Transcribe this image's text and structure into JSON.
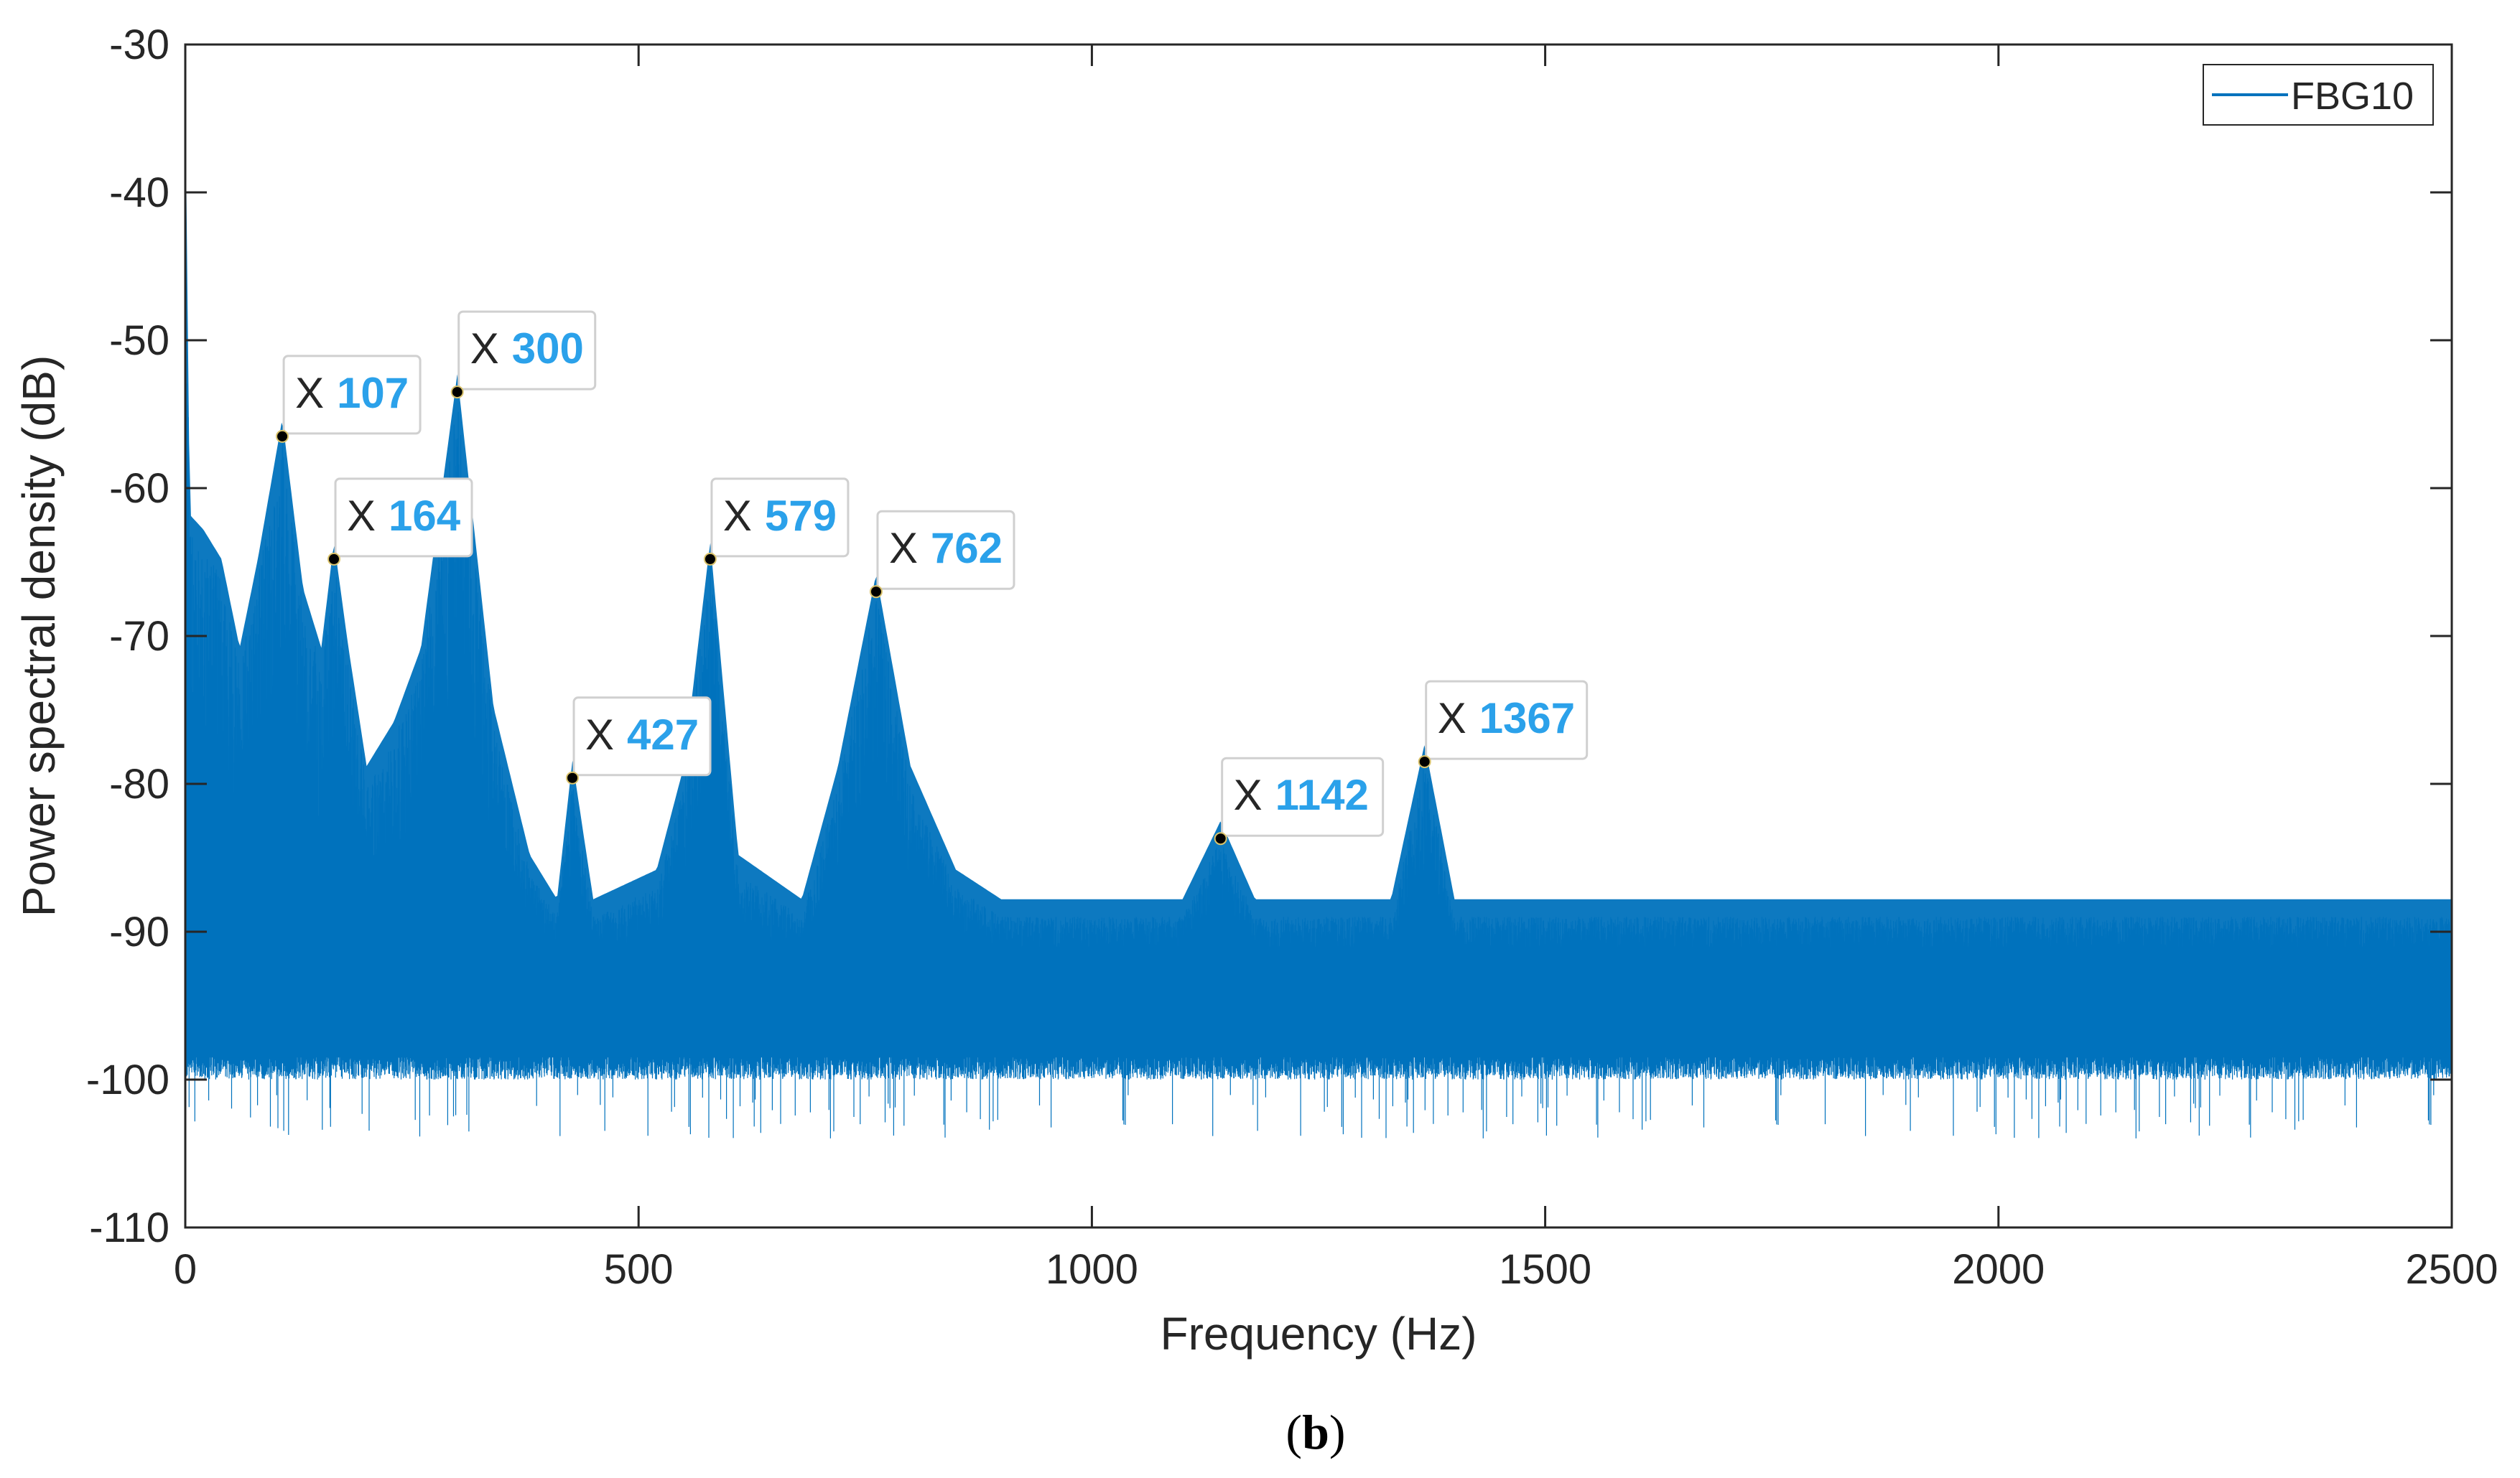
{
  "chart_data": {
    "type": "line",
    "title": "",
    "xlabel": "Frequency (Hz)",
    "ylabel": "Power spectral density (dB)",
    "xlim": [
      0,
      2500
    ],
    "ylim": [
      -110,
      -30
    ],
    "x_ticks": [
      "0",
      "500",
      "1000",
      "1500",
      "2000",
      "2500"
    ],
    "y_ticks": [
      "-30",
      "-40",
      "-50",
      "-60",
      "-70",
      "-80",
      "-90",
      "-100",
      "-110"
    ],
    "grid": false,
    "legend_position": "top-right",
    "series": [
      {
        "name": "FBG10",
        "color": "#0072bd",
        "noise_floor_mean": -95,
        "noise_floor_band": [
          -100,
          -90
        ],
        "envelope_x": [
          0,
          5,
          20,
          40,
          60,
          80,
          107,
          130,
          150,
          164,
          180,
          200,
          230,
          260,
          300,
          340,
          380,
          410,
          427,
          450,
          520,
          550,
          579,
          610,
          680,
          720,
          762,
          800,
          850,
          900,
          1100,
          1142,
          1180,
          1330,
          1367,
          1400,
          2500
        ],
        "envelope_top": [
          -34,
          -63,
          -64,
          -66,
          -72,
          -66,
          -56.5,
          -68,
          -72,
          -64.8,
          -72,
          -80,
          -77,
          -72,
          -53.5,
          -76,
          -86,
          -89,
          -79.6,
          -89,
          -87,
          -80,
          -64.8,
          -86,
          -89,
          -80,
          -67,
          -80,
          -87,
          -89,
          -89,
          -83.7,
          -89,
          -89,
          -78.5,
          -89,
          -89
        ]
      }
    ],
    "datatips": [
      {
        "x_label": "X",
        "x": 107,
        "y": -56.5,
        "value_label": "107"
      },
      {
        "x_label": "X",
        "x": 164,
        "y": -64.8,
        "value_label": "164"
      },
      {
        "x_label": "X",
        "x": 300,
        "y": -53.5,
        "value_label": "300"
      },
      {
        "x_label": "X",
        "x": 427,
        "y": -79.6,
        "value_label": "427"
      },
      {
        "x_label": "X",
        "x": 579,
        "y": -64.8,
        "value_label": "579"
      },
      {
        "x_label": "X",
        "x": 762,
        "y": -67,
        "value_label": "762"
      },
      {
        "x_label": "X",
        "x": 1142,
        "y": -83.7,
        "value_label": "1142"
      },
      {
        "x_label": "X",
        "x": 1367,
        "y": -78.5,
        "value_label": "1367"
      }
    ],
    "panel_label": {
      "open": "(",
      "letter": "b",
      "close": ")"
    }
  }
}
